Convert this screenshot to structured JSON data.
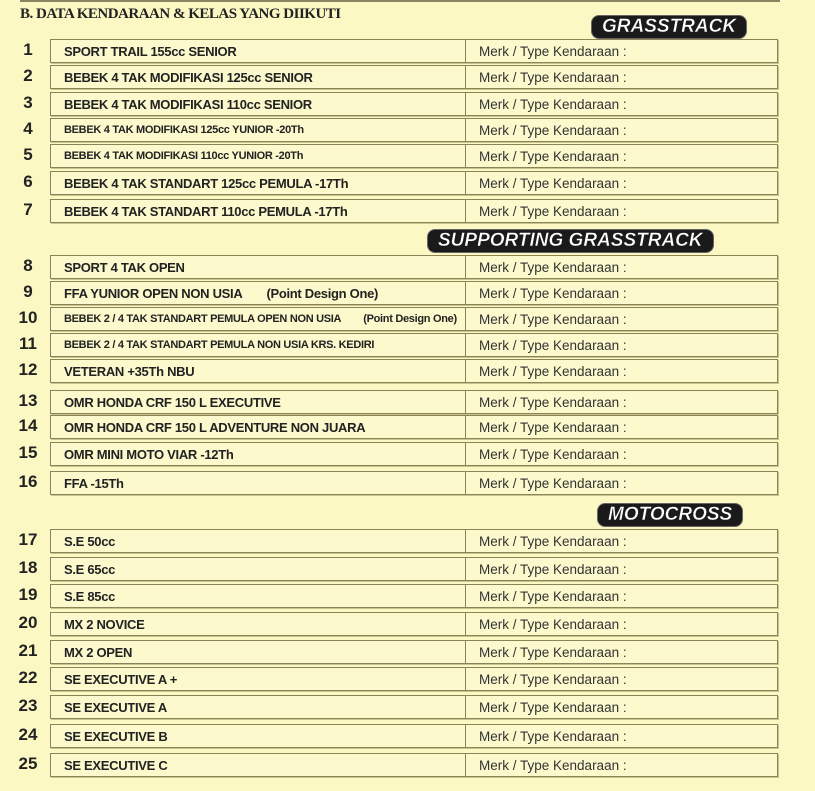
{
  "section_title": "B. DATA KENDARAAN & KELAS YANG DIIKUTI",
  "merk_label": "Merk / Type Kendaraan :",
  "groups": [
    {
      "title": "GRASSTRACK",
      "rows": [
        {
          "no": "1",
          "class": "SPORT TRAIL 155cc SENIOR"
        },
        {
          "no": "2",
          "class": "BEBEK 4 TAK MODIFIKASI 125cc SENIOR"
        },
        {
          "no": "3",
          "class": "BEBEK 4 TAK MODIFIKASI 110cc SENIOR"
        },
        {
          "no": "4",
          "class": "BEBEK 4 TAK MODIFIKASI 125cc YUNIOR -20Th"
        },
        {
          "no": "5",
          "class": "BEBEK 4 TAK MODIFIKASI 110cc YUNIOR -20Th"
        },
        {
          "no": "6",
          "class": "BEBEK 4 TAK STANDART 125cc PEMULA -17Th"
        },
        {
          "no": "7",
          "class": "BEBEK 4 TAK STANDART 110cc PEMULA -17Th"
        }
      ]
    },
    {
      "title": "SUPPORTING GRASSTRACK",
      "rows": [
        {
          "no": "8",
          "class": "SPORT 4 TAK OPEN"
        },
        {
          "no": "9",
          "class": "FFA YUNIOR OPEN NON USIA",
          "note": "(Point Design One)"
        },
        {
          "no": "10",
          "class": "BEBEK 2 / 4 TAK STANDART PEMULA OPEN NON USIA",
          "note": "(Point Design One)"
        },
        {
          "no": "11",
          "class": "BEBEK 2 / 4 TAK STANDART PEMULA NON USIA  KRS. KEDIRI"
        },
        {
          "no": "12",
          "class": "VETERAN +35Th NBU"
        },
        {
          "no": "13",
          "class": "OMR HONDA CRF 150 L EXECUTIVE"
        },
        {
          "no": "14",
          "class": "OMR HONDA CRF 150 L ADVENTURE NON JUARA"
        },
        {
          "no": "15",
          "class": "OMR MINI MOTO VIAR -12Th"
        },
        {
          "no": "16",
          "class": "FFA -15Th"
        }
      ]
    },
    {
      "title": "MOTOCROSS",
      "rows": [
        {
          "no": "17",
          "class": "S.E 50cc"
        },
        {
          "no": "18",
          "class": "S.E 65cc"
        },
        {
          "no": "19",
          "class": "S.E 85cc"
        },
        {
          "no": "20",
          "class": "MX 2 NOVICE"
        },
        {
          "no": "21",
          "class": "MX 2 OPEN"
        },
        {
          "no": "22",
          "class": "SE EXECUTIVE A +"
        },
        {
          "no": "23",
          "class": "SE EXECUTIVE A"
        },
        {
          "no": "24",
          "class": "SE EXECUTIVE B"
        },
        {
          "no": "25",
          "class": "SE EXECUTIVE C"
        }
      ]
    }
  ]
}
